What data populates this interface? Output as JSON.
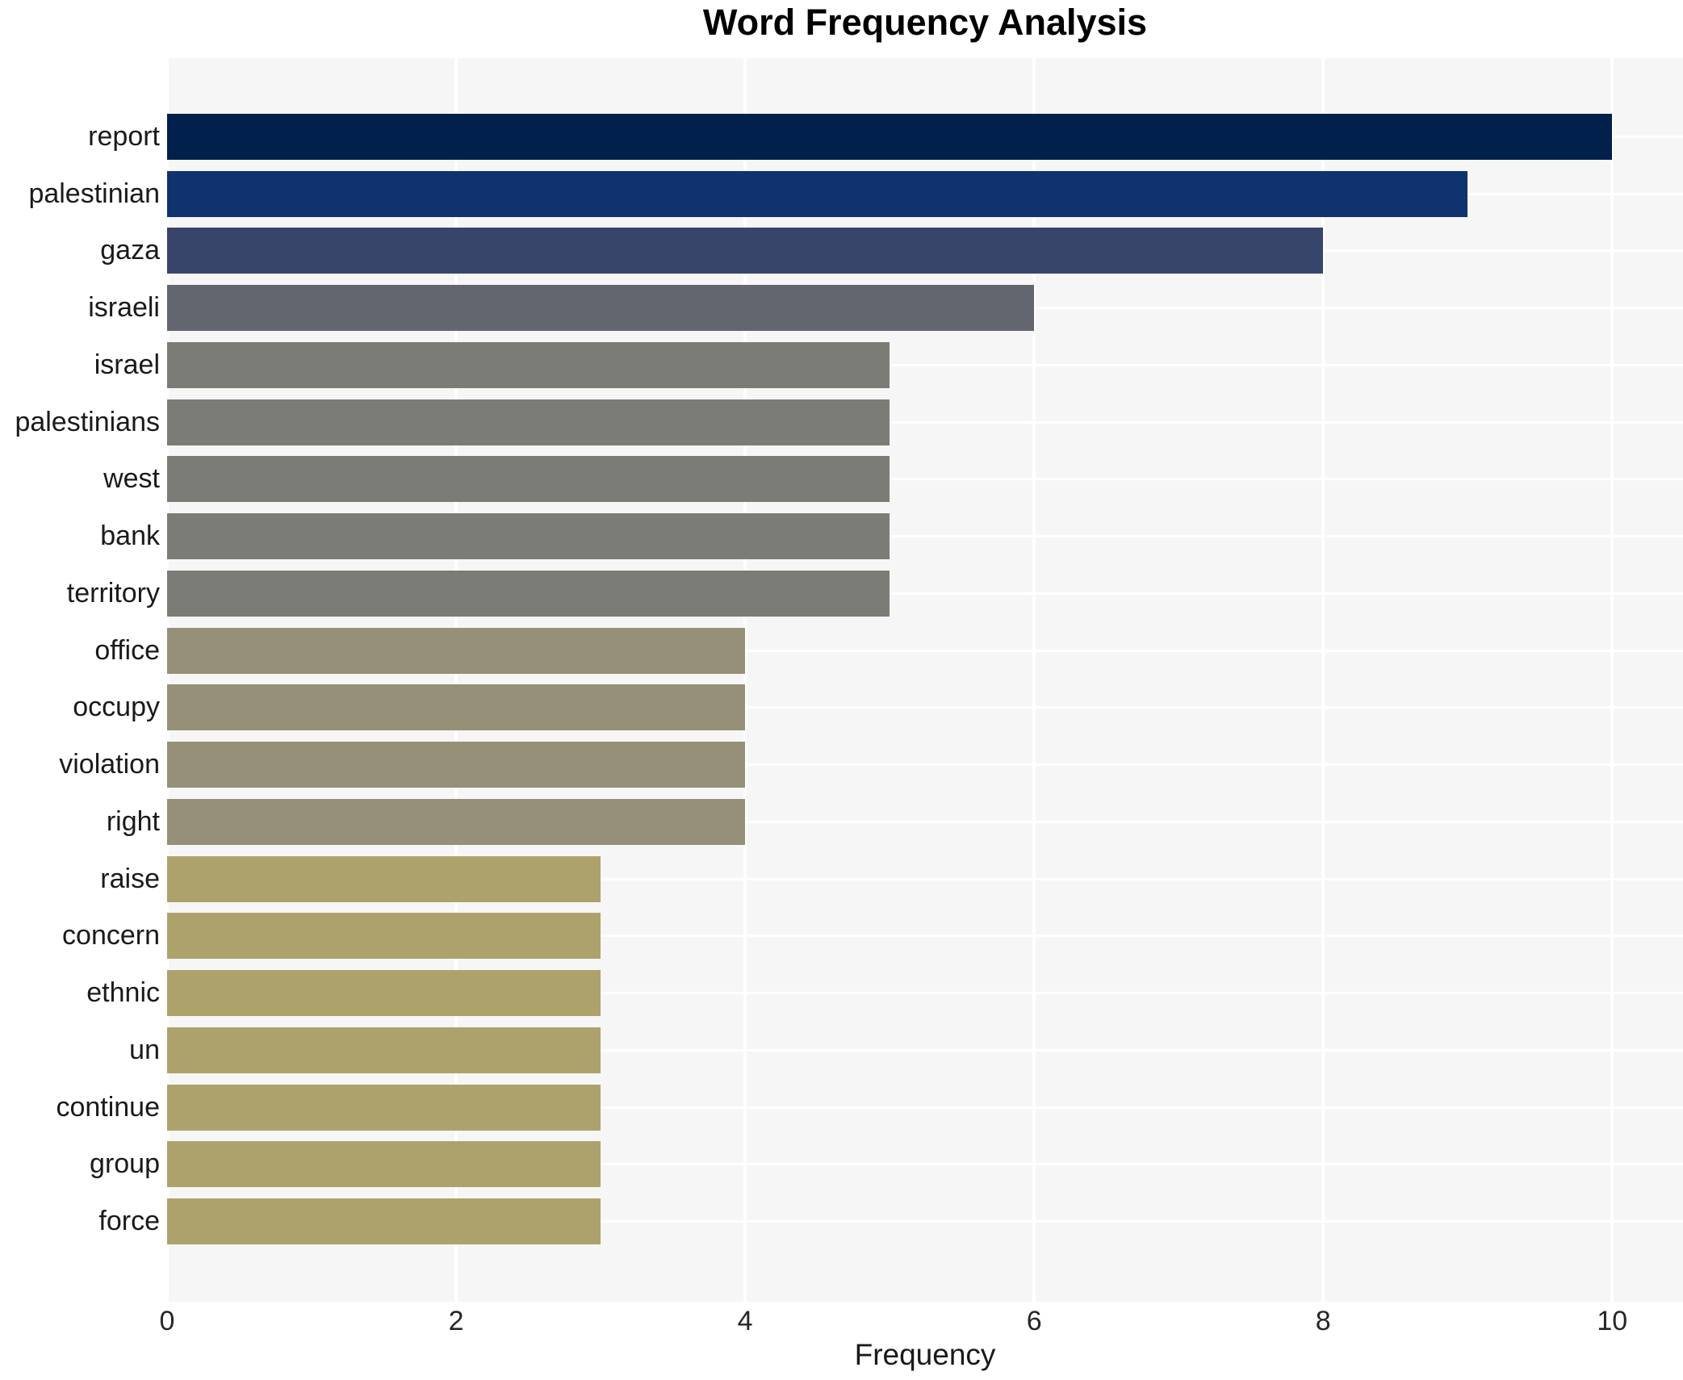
{
  "title": "Word Frequency Analysis",
  "chart_data": {
    "type": "bar",
    "orientation": "horizontal",
    "title": "Word Frequency Analysis",
    "xlabel": "Frequency",
    "ylabel": "",
    "categories": [
      "report",
      "palestinian",
      "gaza",
      "israeli",
      "israel",
      "palestinians",
      "west",
      "bank",
      "territory",
      "office",
      "occupy",
      "violation",
      "right",
      "raise",
      "concern",
      "ethnic",
      "un",
      "continue",
      "group",
      "force"
    ],
    "values": [
      10,
      9,
      8,
      6,
      5,
      5,
      5,
      5,
      5,
      4,
      4,
      4,
      4,
      3,
      3,
      3,
      3,
      3,
      3,
      3
    ],
    "bar_colors": [
      "#02204c",
      "#0e336e",
      "#37456b",
      "#63666f",
      "#7b7c76",
      "#7b7c76",
      "#7b7c76",
      "#7b7c76",
      "#7b7c76",
      "#959077",
      "#959077",
      "#959077",
      "#959077",
      "#aea26c",
      "#aea26c",
      "#aea26c",
      "#aea26c",
      "#aea26c",
      "#aea26c",
      "#aea26c"
    ],
    "xticks": [
      0,
      2,
      4,
      6,
      8,
      10
    ],
    "xlim": [
      0,
      10.49
    ],
    "grid": true,
    "legend_position": "none",
    "colors": {
      "plot_background": "#f6f6f6",
      "grid_line": "#ffffff",
      "tick_text": "#262626",
      "label_text": "#1a1a1a",
      "title_text": "#000000"
    }
  }
}
